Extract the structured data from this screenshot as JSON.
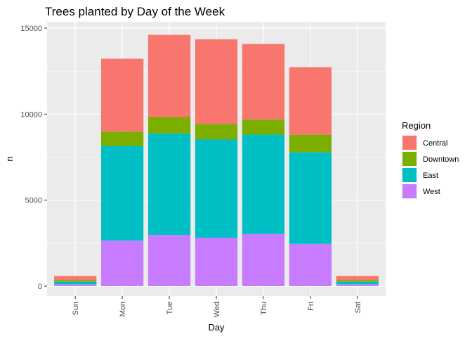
{
  "chart_data": {
    "type": "bar",
    "stacked": true,
    "title": "Trees planted by Day of the Week",
    "xlabel": "Day",
    "ylabel": "n",
    "categories": [
      "Sun",
      "Mon",
      "Tue",
      "Wed",
      "Thu",
      "Fri",
      "Sat"
    ],
    "ylim": [
      0,
      15000
    ],
    "yticks": [
      0,
      5000,
      10000,
      15000
    ],
    "series": [
      {
        "name": "West",
        "color": "#C77CFF",
        "values": [
          110,
          2650,
          2980,
          2820,
          3030,
          2460,
          110
        ]
      },
      {
        "name": "East",
        "color": "#00BFC4",
        "values": [
          150,
          5500,
          5900,
          5720,
          5780,
          5320,
          150
        ]
      },
      {
        "name": "Downtown",
        "color": "#7CAE00",
        "values": [
          100,
          830,
          950,
          890,
          870,
          1020,
          100
        ]
      },
      {
        "name": "Central",
        "color": "#F8766D",
        "values": [
          230,
          4240,
          4780,
          4920,
          4400,
          3930,
          230
        ]
      }
    ],
    "legend": {
      "title": "Region",
      "position": "right",
      "order": [
        "Central",
        "Downtown",
        "East",
        "West"
      ]
    },
    "grid": true,
    "panel_background": "#EBEBEB"
  }
}
